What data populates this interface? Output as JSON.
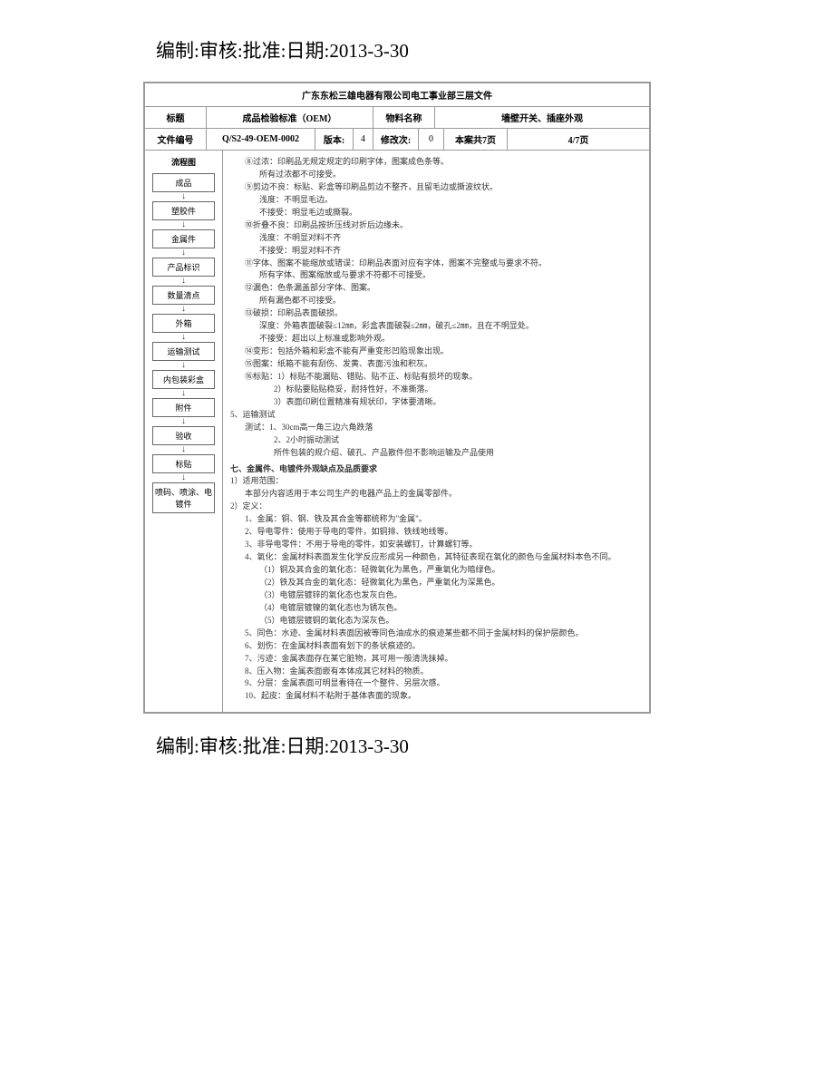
{
  "approval_line": "编制:审核:批准:日期:2013-3-30",
  "doc": {
    "org_title": "广东东松三雄电器有限公司电工事业部三层文件",
    "row2": {
      "l1": "标题",
      "v1": "成品检验标准（OEM）",
      "l2": "物料名称",
      "v2": "墙壁开关、插座外观"
    },
    "row3": {
      "l1": "文件编号",
      "v1a": "Q/S2-49-OEM-0002",
      "v1b_l": "版本:",
      "v1b_v": "4",
      "l2": "修改次:",
      "v2": "0",
      "l3": "本案共7页",
      "v3": "4/7页"
    },
    "flow": {
      "title": "流程图",
      "steps": [
        "成品",
        "塑胶件",
        "金属件",
        "产品标识",
        "数量清点",
        "外箱",
        "运输测试",
        "内包装彩盒",
        "附件",
        "验收",
        "标贴",
        "喷码、喷涂、电镀件"
      ]
    },
    "content": [
      {
        "cls": "ind2",
        "t": "⑧过浓：印刷品无规定规定的印刷字体，图案成色条等。"
      },
      {
        "cls": "ind3",
        "t": "所有过浓都不可接受。"
      },
      {
        "cls": "ind2",
        "t": "⑨剪边不良：标贴、彩盒等印刷品剪边不整齐，且留毛边或撕波纹状。"
      },
      {
        "cls": "ind3",
        "t": "浅度：不明显毛边。"
      },
      {
        "cls": "ind3",
        "t": "不接受：明显毛边或撕裂。"
      },
      {
        "cls": "ind2",
        "t": "⑩折叠不良：印刷品按折压线对折后边缘未。"
      },
      {
        "cls": "ind3",
        "t": "浅度：不明显对料不齐"
      },
      {
        "cls": "ind3",
        "t": "不接受：明显对料不齐"
      },
      {
        "cls": "ind2",
        "t": "⑪字体、图案不能缩放或错误：印刷品表面对应有字体，图案不完整或与要求不符。"
      },
      {
        "cls": "ind3",
        "t": "所有字体、图案缩放或与要求不符都不可接受。"
      },
      {
        "cls": "ind2",
        "t": "⑫漏色：色条漏盖部分字体、图案。"
      },
      {
        "cls": "ind3",
        "t": "所有漏色都不可接受。"
      },
      {
        "cls": "ind2",
        "t": "⑬破损：印刷品表面破损。"
      },
      {
        "cls": "ind3",
        "t": "深度：外箱表面破裂≤12㎜，彩盒表面破裂≤2㎜，破孔≤2㎜，且在不明显处。"
      },
      {
        "cls": "ind3",
        "t": "不接受：超出以上标准或影响外观。"
      },
      {
        "cls": "ind2",
        "t": "⑭变形：包括外箱和彩盒不能有严重变形凹陷现象出现。"
      },
      {
        "cls": "ind2",
        "t": "⑮图案：纸箱不能有刮伤、发黄、表面污浊和积灰。"
      },
      {
        "cls": "ind2",
        "t": "⑯标贴：1）标贴不能漏贴、错贴、贴不正、标贴有损坏的现象。"
      },
      {
        "cls": "ind4",
        "t": "2）标贴要贴贴稳妥，耐持性好，不准撕落。"
      },
      {
        "cls": "ind4",
        "t": "3）表面印刷位置精准有规状印，字体要清晰。"
      },
      {
        "cls": "ind1",
        "t": "5、运输测试"
      },
      {
        "cls": "ind2",
        "t": "测试：1、30cm高一角三边六角跌落"
      },
      {
        "cls": "ind4",
        "t": "2、2小时振动测试"
      },
      {
        "cls": "ind4",
        "t": "所件包装的规介绍、破孔、产品散件但不影响运输及产品使用"
      },
      {
        "cls": "sec-head ind1",
        "t": "七、金属件、电镀件外观缺点及品质要求"
      },
      {
        "cls": "ind1",
        "t": "1）适用范围："
      },
      {
        "cls": "ind2",
        "t": "本部分内容适用于本公司生产的电器产品上的金属零部件。"
      },
      {
        "cls": "ind1",
        "t": "2）定义："
      },
      {
        "cls": "ind2",
        "t": "1、金属：铜、钢、铁及其合金等都统称为\"金属\"。"
      },
      {
        "cls": "ind2",
        "t": "2、导电零件：使用于导电的零件，如铜排、铁线地线等。"
      },
      {
        "cls": "ind2",
        "t": "3、非导电零件：不用于导电的零件，如安装螺钉，计算螺钉等。"
      },
      {
        "cls": "ind2",
        "t": "4、氧化：金属材料表面发生化学反应形成另一种颜色，其特征表现在氧化的颜色与金属材料本色不同。"
      },
      {
        "cls": "ind3",
        "t": "（1）铜及其合金的氧化态：轻微氧化为黑色，严重氧化为暗绿色。"
      },
      {
        "cls": "ind3",
        "t": "（2）铁及其合金的氧化态：轻微氧化为黑色，严重氧化为深黑色。"
      },
      {
        "cls": "ind3",
        "t": "（3）电镀层镀锌的氧化态也发灰白色。"
      },
      {
        "cls": "ind3",
        "t": "（4）电镀层镀镍的氧化态也为锈灰色。"
      },
      {
        "cls": "ind3",
        "t": "（5）电镀层镀铜的氧化态为深灰色。"
      },
      {
        "cls": "ind2",
        "t": "5、同色：水迹、金属材料表面因被等同色油成水的痕迹某些都不同于金属材料的保护层颜色。"
      },
      {
        "cls": "ind2",
        "t": "6、划伤：在金属材料表面有划下的条状痕迹的。"
      },
      {
        "cls": "ind2",
        "t": "7、污迹：金属表面存在某它脏物，其可用一般清洗抹掉。"
      },
      {
        "cls": "ind2",
        "t": "8、压入物：金属表面嵌有本体成其它材料的物质。"
      },
      {
        "cls": "ind2",
        "t": "9、分层：金属表面可明显看待在一个整件、另层次感。"
      },
      {
        "cls": "ind2",
        "t": "10、起皮：金属材料不粘附于基体表面的现象。"
      }
    ]
  },
  "colors": {
    "page_bg": "#ffffff",
    "text": "#000000",
    "border": "#999999",
    "body_text": "#333333"
  }
}
